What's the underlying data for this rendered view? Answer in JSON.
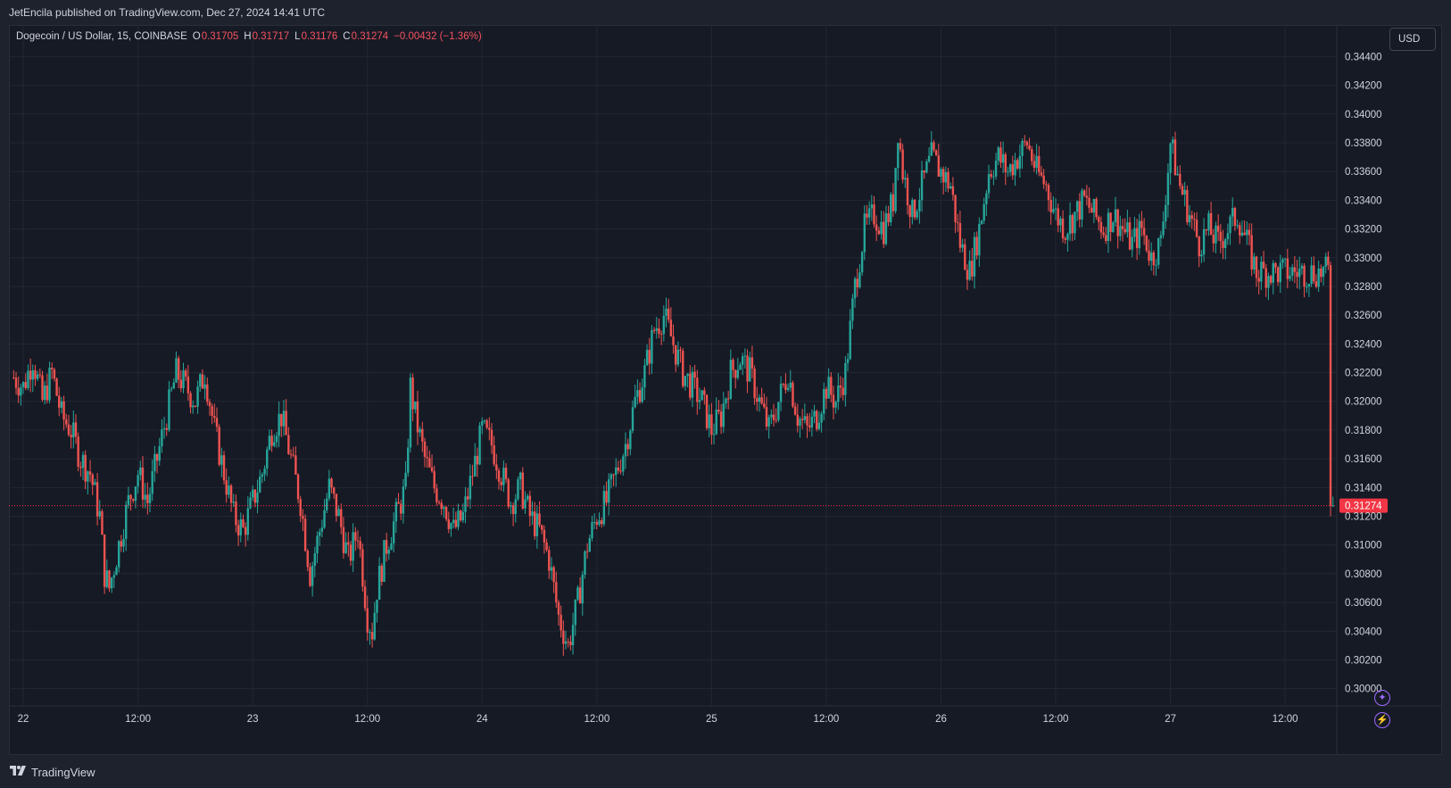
{
  "header": {
    "publisher_text": "JetEncila published on TradingView.com, Dec 27, 2024 14:41 UTC"
  },
  "legend": {
    "symbol": "Dogecoin / US Dollar, 15, COINBASE",
    "open_label": "O",
    "open": "0.31705",
    "high_label": "H",
    "high": "0.31717",
    "low_label": "L",
    "low": "0.31176",
    "close_label": "C",
    "close": "0.31274",
    "change": "−0.00432 (−1.36%)"
  },
  "currency_button": "USD",
  "footer": {
    "brand": "TradingView"
  },
  "icons": [
    "plus-circle-icon",
    "lightning-circle-icon",
    "tradingview-logo-icon"
  ],
  "colors": {
    "background": "#161a25",
    "up": "#26a69a",
    "down": "#ef5350",
    "grid": "#232734",
    "text": "#d1d4dc",
    "price_marker": "#f23645"
  },
  "chart_data": {
    "type": "candlestick",
    "interval": "15",
    "y_axis": {
      "ticks": [
        "0.34400",
        "0.34200",
        "0.34000",
        "0.33800",
        "0.33600",
        "0.33400",
        "0.33200",
        "0.33000",
        "0.32800",
        "0.32600",
        "0.32400",
        "0.32200",
        "0.32000",
        "0.31800",
        "0.31600",
        "0.31400",
        "0.31200",
        "0.31000",
        "0.30800",
        "0.30600",
        "0.30400",
        "0.30200",
        "0.30000"
      ],
      "tick_values": [
        0.344,
        0.342,
        0.34,
        0.338,
        0.336,
        0.334,
        0.332,
        0.33,
        0.328,
        0.326,
        0.324,
        0.322,
        0.32,
        0.318,
        0.316,
        0.314,
        0.312,
        0.31,
        0.308,
        0.306,
        0.304,
        0.302,
        0.3
      ],
      "ylim": [
        0.2988,
        0.3462
      ]
    },
    "x_axis": {
      "ticks": [
        "22",
        "12:00",
        "23",
        "12:00",
        "24",
        "12:00",
        "25",
        "12:00",
        "26",
        "12:00",
        "27",
        "12:00"
      ],
      "tick_hours": [
        0,
        12,
        24,
        36,
        48,
        60,
        72,
        84,
        96,
        108,
        120,
        132
      ],
      "range_hours": [
        -1.5,
        137.4
      ]
    },
    "last_price": 0.31274,
    "last_price_label": "0.31274",
    "price_path": [
      [
        -1.5,
        0.322
      ],
      [
        0,
        0.321
      ],
      [
        1,
        0.323
      ],
      [
        2,
        0.32
      ],
      [
        3,
        0.322
      ],
      [
        4,
        0.319
      ],
      [
        5,
        0.318
      ],
      [
        6,
        0.316
      ],
      [
        7,
        0.315
      ],
      [
        8,
        0.312
      ],
      [
        8.5,
        0.308
      ],
      [
        9,
        0.307
      ],
      [
        10,
        0.31
      ],
      [
        11,
        0.313
      ],
      [
        12,
        0.315
      ],
      [
        13,
        0.313
      ],
      [
        14,
        0.316
      ],
      [
        15,
        0.319
      ],
      [
        16,
        0.322
      ],
      [
        17,
        0.321
      ],
      [
        18,
        0.32
      ],
      [
        19,
        0.322
      ],
      [
        20,
        0.318
      ],
      [
        21,
        0.315
      ],
      [
        22,
        0.312
      ],
      [
        23,
        0.311
      ],
      [
        24,
        0.313
      ],
      [
        25,
        0.315
      ],
      [
        26,
        0.318
      ],
      [
        27,
        0.319
      ],
      [
        28,
        0.316
      ],
      [
        29,
        0.313
      ],
      [
        30,
        0.308
      ],
      [
        31,
        0.311
      ],
      [
        32,
        0.314
      ],
      [
        33,
        0.312
      ],
      [
        34,
        0.309
      ],
      [
        35,
        0.311
      ],
      [
        36,
        0.305
      ],
      [
        36.5,
        0.304
      ],
      [
        37,
        0.307
      ],
      [
        38,
        0.31
      ],
      [
        39,
        0.312
      ],
      [
        40,
        0.314
      ],
      [
        40.5,
        0.321
      ],
      [
        41,
        0.319
      ],
      [
        42,
        0.316
      ],
      [
        43,
        0.314
      ],
      [
        44,
        0.313
      ],
      [
        45,
        0.311
      ],
      [
        46,
        0.312
      ],
      [
        47,
        0.315
      ],
      [
        48,
        0.318
      ],
      [
        49,
        0.317
      ],
      [
        50,
        0.315
      ],
      [
        51,
        0.313
      ],
      [
        52,
        0.314
      ],
      [
        53,
        0.312
      ],
      [
        54,
        0.311
      ],
      [
        55,
        0.309
      ],
      [
        56,
        0.305
      ],
      [
        57,
        0.303
      ],
      [
        58,
        0.306
      ],
      [
        59,
        0.31
      ],
      [
        60,
        0.312
      ],
      [
        61,
        0.313
      ],
      [
        62,
        0.315
      ],
      [
        63,
        0.317
      ],
      [
        64,
        0.32
      ],
      [
        65,
        0.322
      ],
      [
        66,
        0.325
      ],
      [
        67,
        0.326
      ],
      [
        68,
        0.324
      ],
      [
        69,
        0.322
      ],
      [
        70,
        0.321
      ],
      [
        71,
        0.32
      ],
      [
        72,
        0.318
      ],
      [
        73,
        0.319
      ],
      [
        74,
        0.322
      ],
      [
        75,
        0.323
      ],
      [
        76,
        0.322
      ],
      [
        77,
        0.32
      ],
      [
        78,
        0.318
      ],
      [
        79,
        0.32
      ],
      [
        80,
        0.322
      ],
      [
        81,
        0.319
      ],
      [
        82,
        0.318
      ],
      [
        83,
        0.319
      ],
      [
        84,
        0.321
      ],
      [
        85,
        0.32
      ],
      [
        86,
        0.322
      ],
      [
        87,
        0.328
      ],
      [
        88,
        0.332
      ],
      [
        89,
        0.333
      ],
      [
        90,
        0.332
      ],
      [
        91,
        0.334
      ],
      [
        91.5,
        0.339
      ],
      [
        92,
        0.336
      ],
      [
        93,
        0.333
      ],
      [
        94,
        0.335
      ],
      [
        95,
        0.337
      ],
      [
        96,
        0.336
      ],
      [
        97,
        0.335
      ],
      [
        98,
        0.331
      ],
      [
        99,
        0.329
      ],
      [
        100,
        0.332
      ],
      [
        101,
        0.336
      ],
      [
        102,
        0.337
      ],
      [
        103,
        0.336
      ],
      [
        104,
        0.337
      ],
      [
        105,
        0.338
      ],
      [
        106,
        0.336
      ],
      [
        107,
        0.335
      ],
      [
        108,
        0.333
      ],
      [
        109,
        0.332
      ],
      [
        110,
        0.333
      ],
      [
        111,
        0.334
      ],
      [
        112,
        0.333
      ],
      [
        113,
        0.332
      ],
      [
        114,
        0.333
      ],
      [
        115,
        0.332
      ],
      [
        116,
        0.331
      ],
      [
        117,
        0.332
      ],
      [
        118,
        0.33
      ],
      [
        119,
        0.331
      ],
      [
        120,
        0.338
      ],
      [
        121,
        0.335
      ],
      [
        122,
        0.333
      ],
      [
        123,
        0.331
      ],
      [
        124,
        0.332
      ],
      [
        125,
        0.331
      ],
      [
        126,
        0.332
      ],
      [
        127,
        0.333
      ],
      [
        128,
        0.331
      ],
      [
        129,
        0.329
      ]
    ],
    "price_path_note_hours_scale": 1
  }
}
